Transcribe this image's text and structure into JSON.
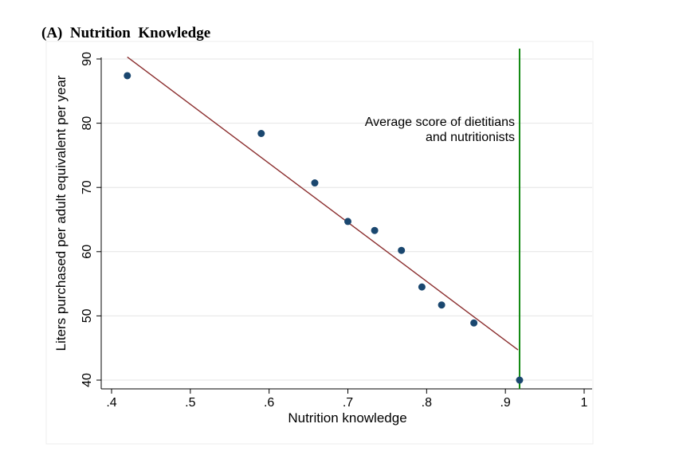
{
  "panel_title": "(A)  Nutrition  Knowledge",
  "chart_data": {
    "type": "scatter",
    "title": "(A)  Nutrition  Knowledge",
    "xlabel": "Nutrition knowledge",
    "ylabel": "Liters purchased per adult equivalent per year",
    "xlim": [
      0.4,
      1.0
    ],
    "ylim": [
      40,
      90
    ],
    "x_ticks": [
      {
        "value": 0.4,
        "label": ".4"
      },
      {
        "value": 0.5,
        "label": ".5"
      },
      {
        "value": 0.6,
        "label": ".6"
      },
      {
        "value": 0.7,
        "label": ".7"
      },
      {
        "value": 0.8,
        "label": ".8"
      },
      {
        "value": 0.9,
        "label": ".9"
      },
      {
        "value": 1.0,
        "label": "1"
      }
    ],
    "y_ticks": [
      {
        "value": 40,
        "label": "40"
      },
      {
        "value": 50,
        "label": "50"
      },
      {
        "value": 60,
        "label": "60"
      },
      {
        "value": 70,
        "label": "70"
      },
      {
        "value": 80,
        "label": "80"
      },
      {
        "value": 90,
        "label": "90"
      }
    ],
    "grid": true,
    "points": [
      {
        "x": 0.42,
        "y": 87.4
      },
      {
        "x": 0.59,
        "y": 78.4
      },
      {
        "x": 0.658,
        "y": 70.7
      },
      {
        "x": 0.7,
        "y": 64.7
      },
      {
        "x": 0.734,
        "y": 63.3
      },
      {
        "x": 0.768,
        "y": 60.2
      },
      {
        "x": 0.794,
        "y": 54.5
      },
      {
        "x": 0.819,
        "y": 51.7
      },
      {
        "x": 0.86,
        "y": 48.9
      },
      {
        "x": 0.918,
        "y": 40.0
      }
    ],
    "fit_line": {
      "x1": 0.42,
      "y1": 90.3,
      "x2": 0.916,
      "y2": 44.7,
      "color": "#8B2E2E"
    },
    "reference_line": {
      "x": 0.918,
      "color": "#118811"
    },
    "annotation": {
      "lines": [
        "Average score of dietitians",
        "and nutritionists"
      ],
      "x": 0.912,
      "y": 79.6
    },
    "marker_color": "#1A476F"
  }
}
